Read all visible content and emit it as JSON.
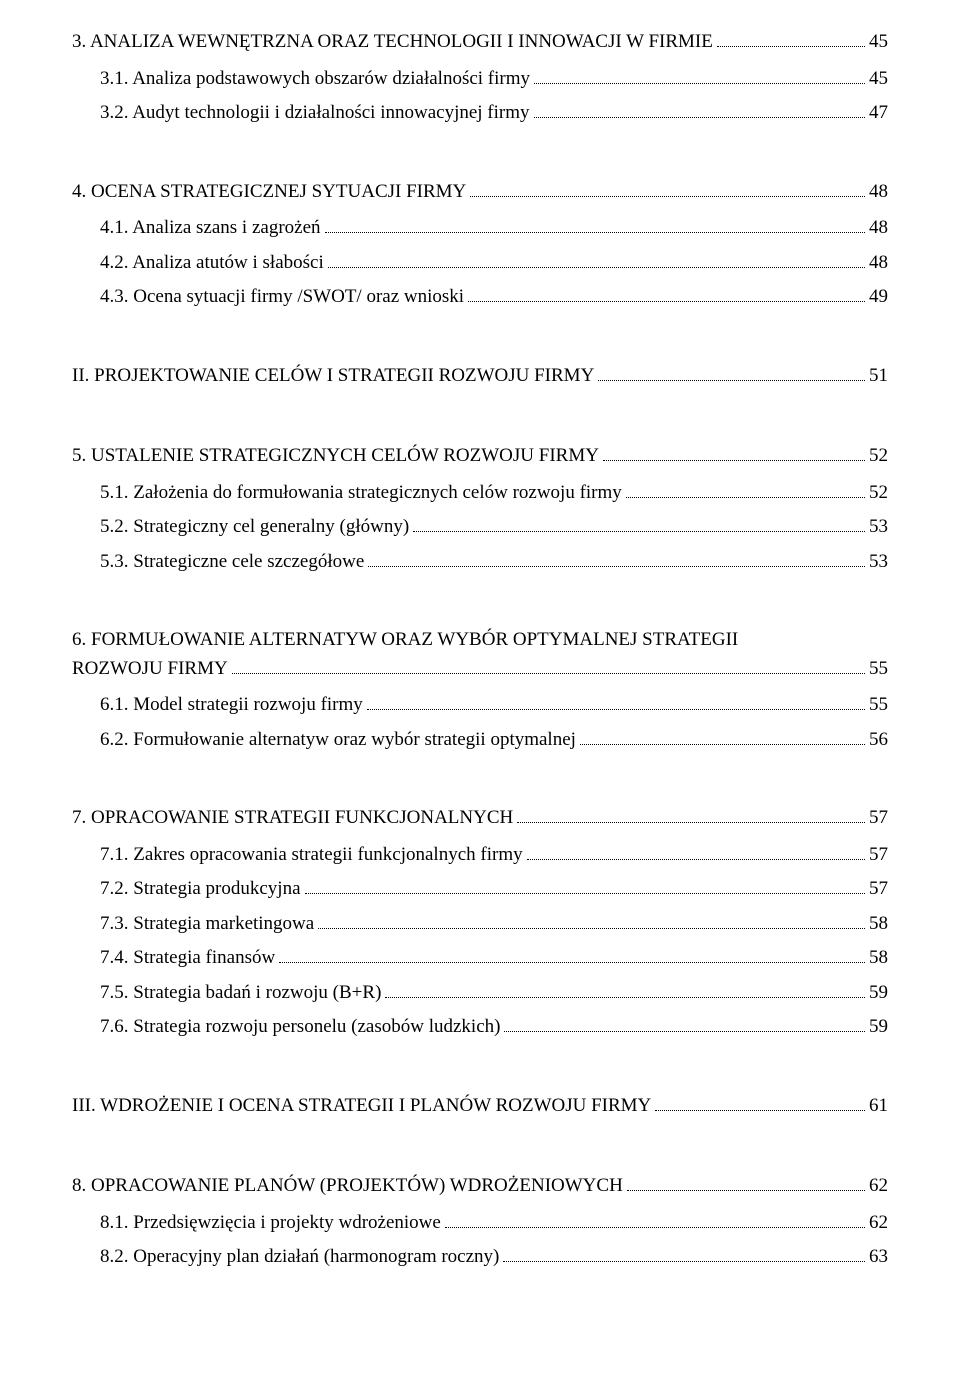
{
  "toc": [
    {
      "kind": "line",
      "indent": 0,
      "style": "section",
      "label": "3. ANALIZA WEWNĘTRZNA ORAZ TECHNOLOGII I INNOWACJI W FIRMIE",
      "page": "45"
    },
    {
      "kind": "line",
      "indent": 1,
      "style": "sub",
      "label": "3.1. Analiza podstawowych obszarów działalności firmy",
      "page": "45"
    },
    {
      "kind": "line",
      "indent": 1,
      "style": "sub",
      "label": "3.2. Audyt technologii i działalności innowacyjnej firmy",
      "page": "47"
    },
    {
      "kind": "gap"
    },
    {
      "kind": "line",
      "indent": 0,
      "style": "section",
      "label": "4. OCENA STRATEGICZNEJ SYTUACJI FIRMY",
      "page": "48"
    },
    {
      "kind": "line",
      "indent": 1,
      "style": "sub",
      "label": "4.1. Analiza szans i zagrożeń",
      "page": "48"
    },
    {
      "kind": "line",
      "indent": 1,
      "style": "sub",
      "label": "4.2. Analiza atutów i słabości",
      "page": "48"
    },
    {
      "kind": "line",
      "indent": 1,
      "style": "sub",
      "label": "4.3. Ocena sytuacji firmy /SWOT/ oraz wnioski",
      "page": "49"
    },
    {
      "kind": "gap"
    },
    {
      "kind": "line",
      "indent": 0,
      "style": "section",
      "label": "II. PROJEKTOWANIE CELÓW I STRATEGII ROZWOJU FIRMY",
      "page": "51"
    },
    {
      "kind": "gap"
    },
    {
      "kind": "line",
      "indent": 0,
      "style": "section",
      "label": "5. USTALENIE STRATEGICZNYCH CELÓW ROZWOJU FIRMY",
      "page": "52"
    },
    {
      "kind": "line",
      "indent": 1,
      "style": "sub",
      "label": "5.1. Założenia do formułowania strategicznych celów rozwoju firmy",
      "page": "52"
    },
    {
      "kind": "line",
      "indent": 1,
      "style": "sub",
      "label": "5.2. Strategiczny cel generalny (główny)",
      "page": "53"
    },
    {
      "kind": "line",
      "indent": 1,
      "style": "sub",
      "label": "5.3. Strategiczne cele szczegółowe",
      "page": "53"
    },
    {
      "kind": "gap"
    },
    {
      "kind": "multiline",
      "indent": 0,
      "style": "section",
      "first": "6. FORMUŁOWANIE ALTERNATYW ORAZ WYBÓR OPTYMALNEJ STRATEGII",
      "last": "ROZWOJU FIRMY",
      "page": "55"
    },
    {
      "kind": "line",
      "indent": 1,
      "style": "sub",
      "label": "6.1. Model strategii rozwoju firmy",
      "page": "55"
    },
    {
      "kind": "line",
      "indent": 1,
      "style": "sub",
      "label": "6.2. Formułowanie alternatyw oraz wybór strategii optymalnej",
      "page": "56"
    },
    {
      "kind": "gap"
    },
    {
      "kind": "line",
      "indent": 0,
      "style": "section",
      "label": "7. OPRACOWANIE STRATEGII FUNKCJONALNYCH",
      "page": "57"
    },
    {
      "kind": "line",
      "indent": 1,
      "style": "sub",
      "label": "7.1. Zakres opracowania strategii funkcjonalnych firmy",
      "page": "57"
    },
    {
      "kind": "line",
      "indent": 1,
      "style": "sub",
      "label": "7.2. Strategia produkcyjna",
      "page": "57"
    },
    {
      "kind": "line",
      "indent": 1,
      "style": "sub",
      "label": "7.3. Strategia marketingowa",
      "page": "58"
    },
    {
      "kind": "line",
      "indent": 1,
      "style": "sub",
      "label": "7.4. Strategia finansów",
      "page": "58"
    },
    {
      "kind": "line",
      "indent": 1,
      "style": "sub",
      "label": "7.5. Strategia badań i rozwoju (B+R)",
      "page": "59"
    },
    {
      "kind": "line",
      "indent": 1,
      "style": "sub",
      "label": "7.6. Strategia rozwoju personelu (zasobów ludzkich)",
      "page": "59"
    },
    {
      "kind": "gap"
    },
    {
      "kind": "line",
      "indent": 0,
      "style": "section",
      "label": "III. WDROŻENIE I OCENA STRATEGII I PLANÓW ROZWOJU FIRMY",
      "page": "61"
    },
    {
      "kind": "gap"
    },
    {
      "kind": "line",
      "indent": 0,
      "style": "section",
      "label": "8. OPRACOWANIE PLANÓW (PROJEKTÓW) WDROŻENIOWYCH",
      "page": "62"
    },
    {
      "kind": "line",
      "indent": 1,
      "style": "sub",
      "label": "8.1. Przedsięwzięcia i projekty wdrożeniowe",
      "page": "62"
    },
    {
      "kind": "line",
      "indent": 1,
      "style": "sub",
      "label": "8.2. Operacyjny plan działań (harmonogram roczny)",
      "page": "63"
    }
  ]
}
